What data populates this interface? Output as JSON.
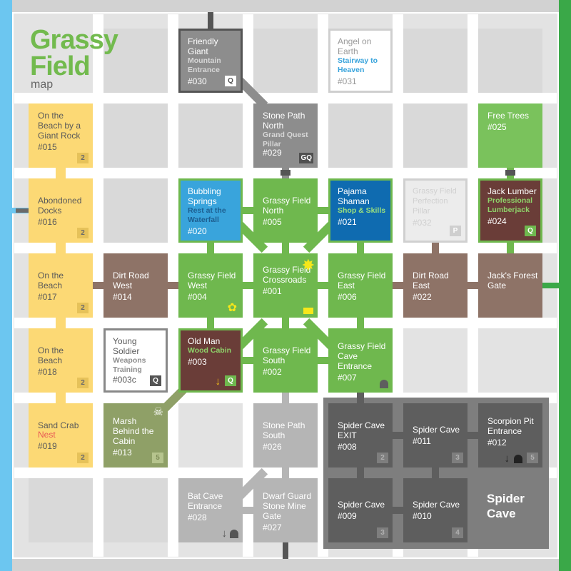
{
  "title": "Grassy Field",
  "subtitle": "map",
  "colors": {
    "left_exit": "#6cc6f0",
    "right_exit": "#3aa848",
    "yellow": "#fcd975",
    "green": "#6fb84e",
    "brown": "#8e7367",
    "cave": "#7e7e7e",
    "nest_red": "#e85a55",
    "sun": "#f7e71a"
  },
  "cave_area": {
    "label": "Spider Cave"
  },
  "tiles": {
    "t030": {
      "name": "Friendly Giant",
      "sub": "Mountain Entrance",
      "id": "#030",
      "badge": "Q"
    },
    "t031": {
      "name": "Angel on Earth",
      "sub": "Stairway to Heaven",
      "id": "#031"
    },
    "t015": {
      "name": "On the Beach by a Giant Rock",
      "id": "#015",
      "badge": "2"
    },
    "t029": {
      "name": "Stone Path North",
      "sub": "Grand Quest Pillar",
      "id": "#029",
      "badge": "GQ"
    },
    "t025": {
      "name": "Free Trees",
      "id": "#025"
    },
    "t016": {
      "name": "Abondoned Docks",
      "id": "#016",
      "badge": "2"
    },
    "t020": {
      "name": "Bubbling Springs",
      "sub": "Rest at the Waterfall",
      "id": "#020"
    },
    "t005": {
      "name": "Grassy Field North",
      "id": "#005"
    },
    "t021": {
      "name": "Pajama Shaman",
      "sub": "Shop & Skills",
      "id": "#021"
    },
    "t032": {
      "name": "Grassy Field Perfection Pillar",
      "id": "#032",
      "badge": "P"
    },
    "t024": {
      "name": "Jack Lumber",
      "sub": "Professional Lumberjack",
      "id": "#024",
      "badge": "Q"
    },
    "t017": {
      "name": "On the Beach",
      "id": "#017",
      "badge": "2"
    },
    "t014": {
      "name": "Dirt Road West",
      "id": "#014"
    },
    "t004": {
      "name": "Grassy Field West",
      "id": "#004"
    },
    "t001": {
      "name": "Grassy Field Crossroads",
      "id": "#001"
    },
    "t006": {
      "name": "Grassy Field East",
      "id": "#006"
    },
    "t022": {
      "name": "Dirt Road East",
      "id": "#022"
    },
    "t023": {
      "name": "Jack's Forest Gate",
      "id": "#023"
    },
    "t018": {
      "name": "On the Beach",
      "id": "#018",
      "badge": "2"
    },
    "t003c": {
      "name": "Young Soldier",
      "sub": "Weapons Training",
      "id": "#003c",
      "badge": "Q"
    },
    "t003": {
      "name": "Old Man",
      "sub": "Wood Cabin",
      "id": "#003",
      "badge": "Q"
    },
    "t002": {
      "name": "Grassy Field South",
      "id": "#002"
    },
    "t007": {
      "name": "Grassy Field Cave Entrance",
      "id": "#007"
    },
    "t019": {
      "name": "Sand Crab",
      "sub": "Nest",
      "id": "#019",
      "badge": "2"
    },
    "t013": {
      "name": "Marsh Behind the Cabin",
      "id": "#013",
      "badge": "5"
    },
    "t026": {
      "name": "Stone Path South",
      "id": "#026"
    },
    "t008": {
      "name": "Spider Cave EXIT",
      "id": "#008",
      "badge": "2"
    },
    "t011": {
      "name": "Spider Cave",
      "id": "#011",
      "badge": "3"
    },
    "t012": {
      "name": "Scorpion Pit Entrance",
      "id": "#012",
      "badge": "5"
    },
    "t028": {
      "name": "Bat Cave Entrance",
      "id": "#028"
    },
    "t027": {
      "name": "Dwarf Guard Stone Mine Gate",
      "id": "#027"
    },
    "t009": {
      "name": "Spider Cave",
      "id": "#009",
      "badge": "3"
    },
    "t010": {
      "name": "Spider Cave",
      "id": "#010",
      "badge": "4"
    }
  }
}
